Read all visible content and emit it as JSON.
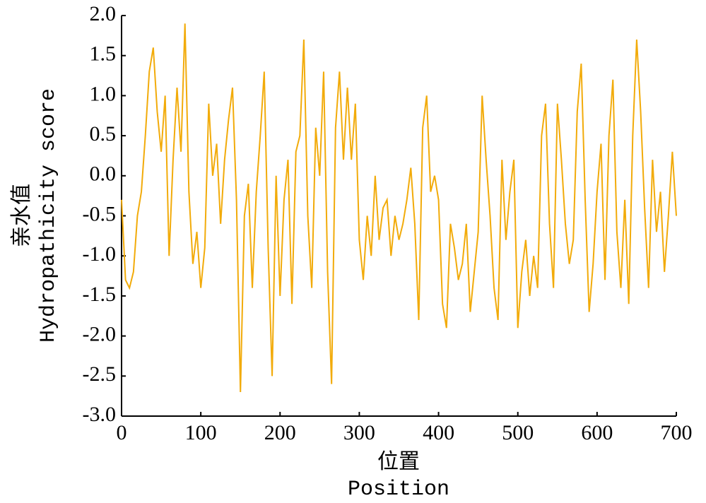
{
  "chart_data": {
    "type": "line",
    "y_label_cn": "亲水值",
    "y_label": "Hydropathicity score",
    "x_label_cn": "位置",
    "x_label": "Position",
    "x": [
      0,
      5,
      10,
      15,
      20,
      25,
      30,
      35,
      40,
      45,
      50,
      55,
      60,
      65,
      70,
      75,
      80,
      85,
      90,
      95,
      100,
      105,
      110,
      115,
      120,
      125,
      130,
      135,
      140,
      145,
      150,
      155,
      160,
      165,
      170,
      175,
      180,
      185,
      190,
      195,
      200,
      205,
      210,
      215,
      220,
      225,
      230,
      235,
      240,
      245,
      250,
      255,
      260,
      265,
      270,
      275,
      280,
      285,
      290,
      295,
      300,
      305,
      310,
      315,
      320,
      325,
      330,
      335,
      340,
      345,
      350,
      355,
      360,
      365,
      370,
      375,
      380,
      385,
      390,
      395,
      400,
      405,
      410,
      415,
      420,
      425,
      430,
      435,
      440,
      445,
      450,
      455,
      460,
      465,
      470,
      475,
      480,
      485,
      490,
      495,
      500,
      505,
      510,
      515,
      520,
      525,
      530,
      535,
      540,
      545,
      550,
      555,
      560,
      565,
      570,
      575,
      580,
      585,
      590,
      595,
      600,
      605,
      610,
      615,
      620,
      625,
      630,
      635,
      640,
      645,
      650,
      655,
      660,
      665,
      670,
      675,
      680,
      685,
      690,
      695,
      700
    ],
    "series": [
      {
        "color": "#f2ab0a",
        "values": [
          -0.3,
          -1.3,
          -1.4,
          -1.2,
          -0.5,
          -0.2,
          0.5,
          1.3,
          1.6,
          0.8,
          0.3,
          1.0,
          -1.0,
          0.2,
          1.1,
          0.3,
          1.9,
          -0.2,
          -1.1,
          -0.7,
          -1.4,
          -0.9,
          0.9,
          0.0,
          0.4,
          -0.6,
          0.2,
          0.7,
          1.1,
          -0.3,
          -2.7,
          -0.5,
          -0.1,
          -1.4,
          -0.2,
          0.5,
          1.3,
          -0.9,
          -2.5,
          0.0,
          -1.5,
          -0.3,
          0.2,
          -1.6,
          0.3,
          0.5,
          1.7,
          -0.5,
          -1.4,
          0.6,
          0.0,
          1.3,
          -1.2,
          -2.6,
          0.6,
          1.3,
          0.2,
          1.1,
          0.2,
          0.9,
          -0.8,
          -1.3,
          -0.5,
          -1.0,
          0.0,
          -0.8,
          -0.4,
          -0.3,
          -1.0,
          -0.5,
          -0.8,
          -0.6,
          -0.3,
          0.1,
          -0.6,
          -1.8,
          0.6,
          1.0,
          -0.2,
          0.0,
          -0.3,
          -1.6,
          -1.9,
          -0.6,
          -0.9,
          -1.3,
          -1.1,
          -0.6,
          -1.7,
          -1.2,
          -0.7,
          1.0,
          0.2,
          -0.5,
          -1.4,
          -1.8,
          0.2,
          -0.8,
          -0.2,
          0.2,
          -1.9,
          -1.2,
          -0.8,
          -1.5,
          -1.0,
          -1.4,
          0.5,
          0.9,
          -0.6,
          -1.4,
          0.9,
          0.2,
          -0.6,
          -1.1,
          -0.8,
          0.8,
          1.4,
          -0.3,
          -1.7,
          -1.1,
          -0.2,
          0.4,
          -1.3,
          0.5,
          1.2,
          -0.7,
          -1.4,
          -0.3,
          -1.6,
          0.5,
          1.7,
          0.8,
          -0.4,
          -1.4,
          0.2,
          -0.7,
          -0.2,
          -1.2,
          -0.5,
          0.3,
          -0.5
        ]
      }
    ],
    "xlim": [
      0,
      700
    ],
    "xticks": [
      0,
      100,
      200,
      300,
      400,
      500,
      600,
      700
    ],
    "ylim": [
      -3,
      2
    ],
    "yticks": [
      {
        "value": -3,
        "label": "-3.0"
      },
      {
        "value": -2.5,
        "label": "-2.5"
      },
      {
        "value": -2,
        "label": "-2.0"
      },
      {
        "value": -1.5,
        "label": "-1.5"
      },
      {
        "value": -1,
        "label": "-1.0"
      },
      {
        "value": -0.5,
        "label": "-0.5"
      },
      {
        "value": 0,
        "label": "0.0"
      },
      {
        "value": 0.5,
        "label": "0.5"
      },
      {
        "value": 1,
        "label": "1.0"
      },
      {
        "value": 1.5,
        "label": "1.5"
      },
      {
        "value": 2,
        "label": "2.0"
      }
    ]
  }
}
